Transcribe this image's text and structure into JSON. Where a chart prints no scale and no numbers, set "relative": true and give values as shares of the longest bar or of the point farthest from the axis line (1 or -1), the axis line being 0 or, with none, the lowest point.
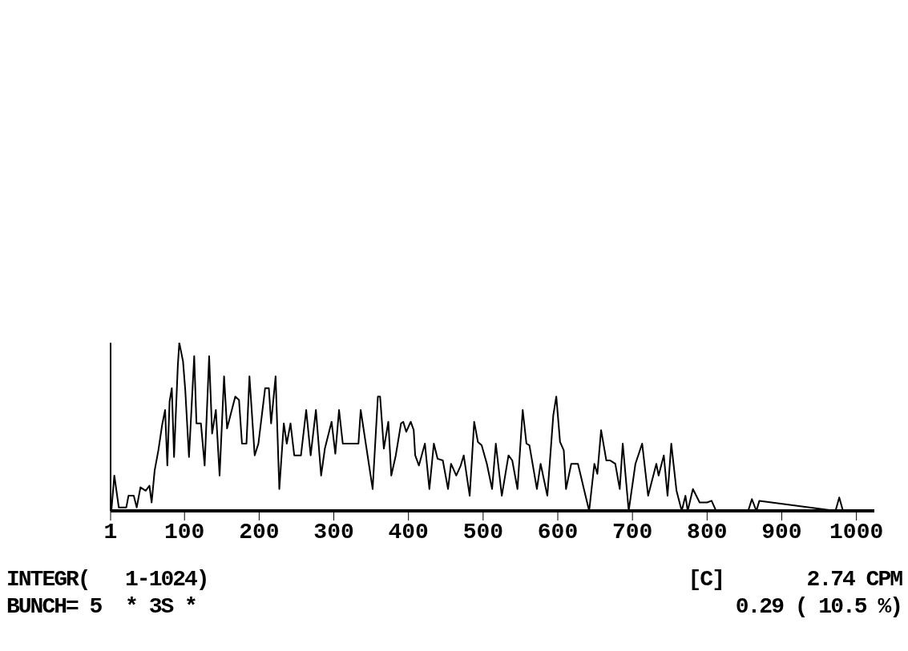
{
  "chart_data": {
    "type": "line",
    "relative": true,
    "color": "#000000",
    "marker": "none",
    "line_style": "solid",
    "x": [
      2,
      6,
      12,
      22,
      25,
      32,
      36,
      41,
      48,
      53,
      56,
      60,
      65,
      70,
      74,
      77,
      80,
      83,
      86,
      91,
      93,
      98,
      101,
      106,
      113,
      116,
      122,
      127,
      133,
      137,
      142,
      147,
      153,
      157,
      168,
      173,
      177,
      183,
      187,
      194,
      199,
      208,
      213,
      216,
      222,
      227,
      233,
      237,
      242,
      247,
      256,
      263,
      269,
      276,
      283,
      288,
      297,
      302,
      307,
      312,
      333,
      336,
      352,
      359,
      362,
      367,
      373,
      377,
      383,
      390,
      393,
      397,
      403,
      407,
      409,
      414,
      422,
      428,
      434,
      439,
      446,
      453,
      457,
      464,
      470,
      474,
      482,
      488,
      493,
      498,
      505,
      512,
      517,
      525,
      534,
      539,
      546,
      553,
      558,
      562,
      572,
      577,
      586,
      594,
      598,
      603,
      608,
      611,
      618,
      627,
      635,
      642,
      649,
      653,
      658,
      665,
      670,
      677,
      683,
      687,
      695,
      704,
      713,
      721,
      732,
      735,
      742,
      747,
      752,
      759,
      766,
      771,
      774,
      781,
      790,
      800,
      806,
      812,
      855,
      860,
      866,
      870,
      972,
      977,
      982,
      1024
    ],
    "values": [
      0,
      0.21,
      0.02,
      0.02,
      0.09,
      0.09,
      0.02,
      0.14,
      0.12,
      0.15,
      0.05,
      0.24,
      0.36,
      0.51,
      0.6,
      0.27,
      0.65,
      0.73,
      0.32,
      0.86,
      1,
      0.89,
      0.72,
      0.32,
      0.92,
      0.52,
      0.52,
      0.27,
      0.92,
      0.46,
      0.6,
      0.21,
      0.8,
      0.49,
      0.68,
      0.66,
      0.4,
      0.4,
      0.8,
      0.33,
      0.4,
      0.73,
      0.73,
      0.52,
      0.8,
      0.13,
      0.52,
      0.4,
      0.52,
      0.33,
      0.33,
      0.6,
      0.33,
      0.6,
      0.21,
      0.37,
      0.53,
      0.34,
      0.6,
      0.4,
      0.4,
      0.6,
      0.13,
      0.68,
      0.68,
      0.37,
      0.53,
      0.21,
      0.33,
      0.52,
      0.53,
      0.47,
      0.53,
      0.48,
      0.33,
      0.27,
      0.4,
      0.13,
      0.4,
      0.31,
      0.3,
      0.13,
      0.28,
      0.21,
      0.27,
      0.33,
      0.09,
      0.53,
      0.41,
      0.39,
      0.28,
      0.13,
      0.4,
      0.09,
      0.33,
      0.3,
      0.13,
      0.6,
      0.4,
      0.39,
      0.13,
      0.28,
      0.09,
      0.57,
      0.68,
      0.41,
      0.36,
      0.13,
      0.28,
      0.28,
      0.13,
      0,
      0.28,
      0.22,
      0.48,
      0.3,
      0.3,
      0.28,
      0.13,
      0.4,
      0,
      0.28,
      0.4,
      0.09,
      0.28,
      0.21,
      0.33,
      0.09,
      0.4,
      0.12,
      0,
      0.09,
      0,
      0.13,
      0.05,
      0.05,
      0.06,
      0,
      0,
      0.07,
      0,
      0.06,
      0,
      0.08,
      0,
      0
    ],
    "xlim": [
      1,
      1024
    ],
    "xticks": [
      1,
      100,
      200,
      300,
      400,
      500,
      600,
      700,
      800,
      900,
      1000
    ],
    "annotations": [
      "INTEGR(   1-1024)",
      "BUNCH= 5  * 3S *",
      "[C]       2.74 CPM",
      "0.29 ( 10.5 %)"
    ]
  }
}
